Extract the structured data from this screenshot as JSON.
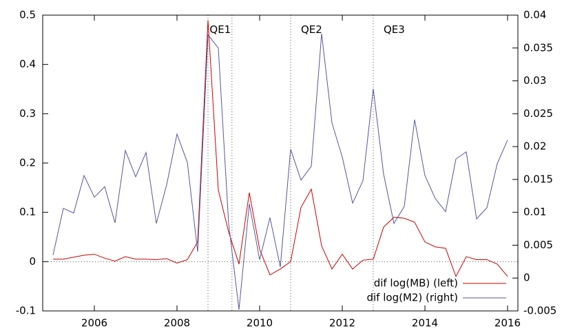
{
  "chart_data": {
    "type": "line",
    "x": [
      2005.0,
      2005.25,
      2005.5,
      2005.75,
      2006.0,
      2006.25,
      2006.5,
      2006.75,
      2007.0,
      2007.25,
      2007.5,
      2007.75,
      2008.0,
      2008.25,
      2008.5,
      2008.75,
      2009.0,
      2009.25,
      2009.5,
      2009.75,
      2010.0,
      2010.25,
      2010.5,
      2010.75,
      2011.0,
      2011.25,
      2011.5,
      2011.75,
      2012.0,
      2012.25,
      2012.5,
      2012.75,
      2013.0,
      2013.25,
      2013.5,
      2013.75,
      2014.0,
      2014.25,
      2014.5,
      2014.75,
      2015.0,
      2015.25,
      2015.5,
      2015.75,
      2016.0
    ],
    "series": [
      {
        "name": "dif log(MB) (left)",
        "color": "#cc0000",
        "axis": "y",
        "values": [
          0.005,
          0.005,
          0.009,
          0.013,
          0.015,
          0.007,
          0.001,
          0.01,
          0.005,
          0.005,
          0.004,
          0.006,
          -0.003,
          0.004,
          0.04,
          0.49,
          0.145,
          0.06,
          -0.005,
          0.14,
          0.025,
          -0.027,
          -0.015,
          0.0,
          0.11,
          0.147,
          0.032,
          -0.015,
          0.015,
          -0.015,
          0.003,
          0.005,
          0.07,
          0.09,
          0.088,
          0.08,
          0.04,
          0.03,
          0.027,
          -0.03,
          0.01,
          0.004,
          0.004,
          -0.005,
          -0.03
        ]
      },
      {
        "name": "dif log(M2) (right)",
        "color": "#5555a0",
        "axis": "y2",
        "values": [
          0.0035,
          0.0106,
          0.0099,
          0.0156,
          0.0123,
          0.0139,
          0.0084,
          0.0194,
          0.0154,
          0.0191,
          0.0083,
          0.0142,
          0.0219,
          0.0176,
          0.004,
          0.037,
          0.035,
          0.0083,
          -0.0048,
          0.0113,
          0.0028,
          0.0092,
          0.0017,
          0.0196,
          0.0149,
          0.017,
          0.0372,
          0.0236,
          0.0184,
          0.0114,
          0.0148,
          0.0288,
          0.0158,
          0.0083,
          0.0109,
          0.0241,
          0.0156,
          0.0121,
          0.0101,
          0.0181,
          0.0192,
          0.009,
          0.0107,
          0.0174,
          0.021
        ]
      }
    ],
    "xlim": [
      2004.75,
      2016.25
    ],
    "xticks": [
      2006,
      2008,
      2010,
      2012,
      2014,
      2016
    ],
    "ylim": [
      -0.1,
      0.5
    ],
    "yticks": [
      -0.1,
      0,
      0.1,
      0.2,
      0.3,
      0.4,
      0.5
    ],
    "y2lim": [
      -0.005,
      0.04
    ],
    "y2ticks": [
      -0.005,
      0,
      0.005,
      0.01,
      0.015,
      0.02,
      0.025,
      0.03,
      0.035,
      0.04
    ],
    "vlines": [
      2008.75,
      2009.33,
      2010.75,
      2012.75
    ],
    "annotations": [
      {
        "text": "QE1",
        "x": 2008.79,
        "y": 0.47
      },
      {
        "text": "QE2",
        "x": 2011.0,
        "y": 0.47
      },
      {
        "text": "QE3",
        "x": 2013.0,
        "y": 0.47
      }
    ],
    "legend": "bottom-right"
  }
}
